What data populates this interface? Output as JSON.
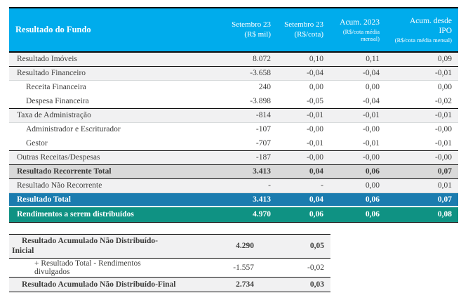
{
  "colors": {
    "header_bg": "#00ACEC",
    "total_row_bg": "#1B7CAF",
    "distribution_row_bg": "#0F9283",
    "group_row_bg": "#F1F1F2",
    "recurring_total_row_bg": "#D9D9D9",
    "text": "#3E3E3D"
  },
  "main_table": {
    "title": "Resultado do Fundo",
    "columns": [
      {
        "label": "Setembro 23",
        "unit": "(R$ mil)"
      },
      {
        "label": "Setembro 23",
        "unit": "(R$/cota)"
      },
      {
        "label": "Acum. 2023",
        "unit": "(R$/cota média mensal)"
      },
      {
        "label": "Acum. desde IPO",
        "unit": "(R$/cota média mensal)"
      }
    ],
    "rows": [
      {
        "label": "Resultado Imóveis",
        "values": [
          "8.072",
          "0,10",
          "0,11",
          "0,09"
        ],
        "type": "group",
        "divider": "dark"
      },
      {
        "label": "Resultado Financeiro",
        "values": [
          "-3.658",
          "-0,04",
          "-0,04",
          "-0,01"
        ],
        "type": "group",
        "divider": "light"
      },
      {
        "label": "Receita Financeira",
        "values": [
          "240",
          "0,00",
          "0,00",
          "0,00"
        ],
        "type": "sub",
        "divider": "none"
      },
      {
        "label": "Despesa Financeira",
        "values": [
          "-3.898",
          "-0,05",
          "-0,04",
          "-0,02"
        ],
        "type": "sub",
        "divider": "dark"
      },
      {
        "label": "Taxa de Administração",
        "values": [
          "-814",
          "-0,01",
          "-0,01",
          "-0,01"
        ],
        "type": "group",
        "divider": "light"
      },
      {
        "label": "Administrador e Escriturador",
        "values": [
          "-107",
          "-0,00",
          "-0,00",
          "-0,00"
        ],
        "type": "sub",
        "divider": "none"
      },
      {
        "label": "Gestor",
        "values": [
          "-707",
          "-0,01",
          "-0,01",
          "-0,01"
        ],
        "type": "sub",
        "divider": "dark"
      },
      {
        "label": "Outras Receitas/Despesas",
        "values": [
          "-187",
          "-0,00",
          "-0,00",
          "-0,00"
        ],
        "type": "group",
        "divider": "dark"
      },
      {
        "label": "Resultado Recorrente Total",
        "values": [
          "3.413",
          "0,04",
          "0,06",
          "0,07"
        ],
        "type": "total_gray",
        "divider": "dark"
      },
      {
        "label": "Resultado Não Recorrente",
        "values": [
          "-",
          "-",
          "0,00",
          "0,01"
        ],
        "type": "group",
        "divider": "light"
      },
      {
        "label": "Resultado Total",
        "values": [
          "3.413",
          "0,04",
          "0,06",
          "0,07"
        ],
        "type": "total_blue",
        "divider": "white"
      },
      {
        "label": "Rendimentos a serem distribuídos",
        "values": [
          "4.970",
          "0,06",
          "0,06",
          "0,08"
        ],
        "type": "total_green",
        "divider": "dark"
      }
    ]
  },
  "accumulated_table": {
    "rows": [
      {
        "label": "Resultado Acumulado Não Distribuído-Inicial",
        "values": [
          "4.290",
          "0,05"
        ],
        "type": "bold_gray",
        "divider": "dark"
      },
      {
        "label": "+ Resultado Total - Rendimentos divulgados",
        "values": [
          "-1.557",
          "-0,02"
        ],
        "type": "sub2",
        "divider": "dark"
      },
      {
        "label": "Resultado Acumulado Não Distribuído-Final",
        "values": [
          "2.734",
          "0,03"
        ],
        "type": "bold_gray",
        "divider": "dark"
      }
    ]
  }
}
